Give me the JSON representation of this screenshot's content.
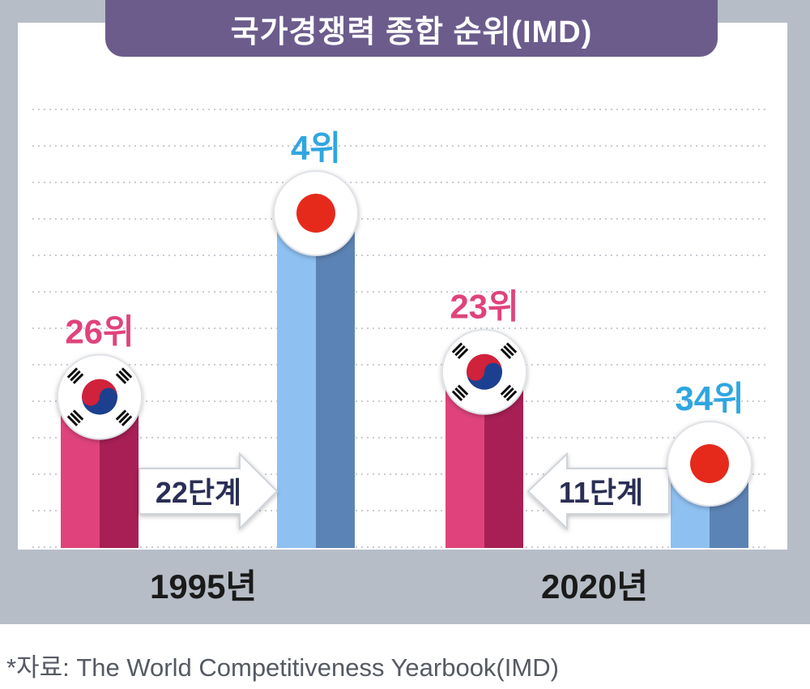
{
  "title": "국가경쟁력 종합 순위(IMD)",
  "source": "*자료: The World Competitiveness Yearbook(IMD)",
  "colors": {
    "korea_light": "#e0437c",
    "korea_dark": "#a81f55",
    "korea_label": "#e0437c",
    "japan_light": "#8ec1f2",
    "japan_dark": "#5c83b5",
    "japan_label": "#2fa6e0",
    "title_bg": "#6c5c8c",
    "arrow_text": "#2b2f55"
  },
  "chart_data": {
    "type": "bar",
    "title": "국가경쟁력 종합 순위(IMD)",
    "categories": [
      "1995년",
      "2020년"
    ],
    "series": [
      {
        "flag": "korea-flag-icon",
        "values": [
          26,
          23
        ],
        "labels": [
          "26위",
          "23위"
        ]
      },
      {
        "flag": "japan-flag-icon",
        "values": [
          4,
          34
        ],
        "labels": [
          "4위",
          "34위"
        ]
      }
    ],
    "value_meaning": "rank (lower is better)",
    "annotations": [
      {
        "category": "1995년",
        "text": "22단계",
        "direction": "right"
      },
      {
        "category": "2020년",
        "text": "11단계",
        "direction": "left"
      }
    ],
    "grid": true,
    "legend": "none"
  }
}
